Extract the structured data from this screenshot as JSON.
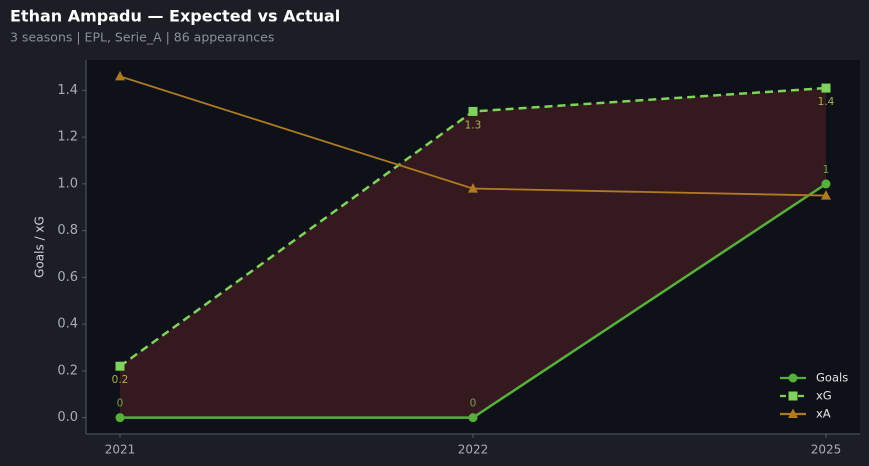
{
  "chart_data": {
    "type": "line",
    "title": "Ethan Ampadu — Expected vs Actual",
    "subtitle": "3 seasons | EPL, Serie_A | 86 appearances",
    "ylabel": "Goals / xG",
    "categories": [
      "2021",
      "2022",
      "2025"
    ],
    "series": [
      {
        "name": "Goals",
        "color": "#55b03c",
        "marker": "circle",
        "dashed": false,
        "values": [
          0,
          0,
          1
        ],
        "value_labels": [
          "0",
          "0",
          "1"
        ]
      },
      {
        "name": "xG",
        "color": "#7fd35c",
        "marker": "square",
        "dashed": true,
        "values": [
          0.22,
          1.31,
          1.41
        ],
        "value_labels": [
          "0.2",
          "1.3",
          "1.4"
        ]
      },
      {
        "name": "xA",
        "color": "#b07a23",
        "marker": "triangle",
        "dashed": false,
        "values": [
          1.46,
          0.98,
          0.95
        ]
      }
    ],
    "ylim": [
      -0.07,
      1.53
    ],
    "yticks": [
      {
        "value": 0,
        "label": "0.0"
      },
      0.2,
      0.4,
      0.6,
      0.8,
      {
        "value": 1,
        "label": "1.0"
      },
      1.2,
      1.4
    ],
    "fill_between": [
      "Goals",
      "xG"
    ],
    "legend": "lower right"
  }
}
